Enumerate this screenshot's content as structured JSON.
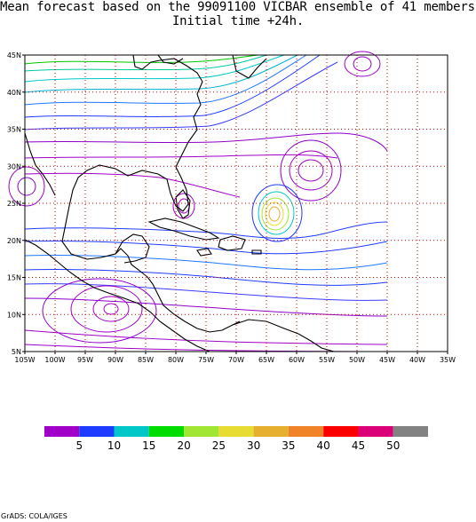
{
  "title_line1": "Mean forecast based on the 99091100 VICBAR ensemble of 41 members.",
  "title_line2": "Initial time +24h.",
  "lat_labels": [
    "45N",
    "40N",
    "35N",
    "30N",
    "25N",
    "20N",
    "15N",
    "10N",
    "5N"
  ],
  "lon_labels": [
    "105W",
    "100W",
    "95W",
    "90W",
    "85W",
    "80W",
    "75W",
    "70W",
    "65W",
    "60W",
    "55W",
    "50W",
    "45W",
    "40W",
    "35W"
  ],
  "colorbar": {
    "labels": [
      "5",
      "10",
      "15",
      "20",
      "25",
      "30",
      "35",
      "40",
      "45",
      "50"
    ],
    "colors": [
      "#a000c8",
      "#1e3cff",
      "#00c8c8",
      "#00dc00",
      "#a0e632",
      "#e6dc32",
      "#e6af2d",
      "#f08228",
      "#fa0000",
      "#dc0078",
      "#828282"
    ]
  },
  "credit": "GrADS: COLA/IGES"
}
